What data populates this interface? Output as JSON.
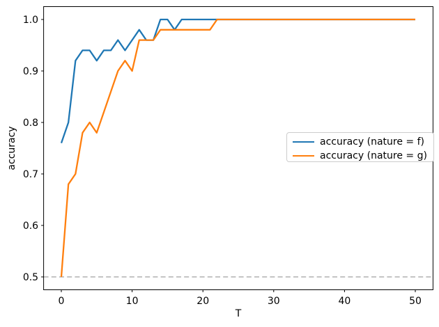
{
  "figure": {
    "background": "#ffffff"
  },
  "chart_data": {
    "type": "line",
    "xlabel": "T",
    "ylabel": "accuracy",
    "x_ticks": [
      0,
      10,
      20,
      30,
      40,
      50
    ],
    "y_ticks": [
      0.5,
      0.6,
      0.7,
      0.8,
      0.9,
      1.0
    ],
    "xlim": [
      -2.5,
      52.5
    ],
    "ylim": [
      0.475,
      1.025
    ],
    "grid": false,
    "axis_color": "#000000",
    "tick_label_color": "#000000",
    "reference_line": {
      "y": 0.5,
      "color": "#b0b0b0",
      "style": "dashed"
    },
    "legend": {
      "position": "center right",
      "border_color": "#cccccc",
      "entries": [
        "accuracy (nature = f)",
        "accuracy (nature = g)"
      ]
    },
    "series": [
      {
        "name": "accuracy (nature = f)",
        "color": "#1f77b4",
        "x": [
          0,
          1,
          2,
          3,
          4,
          5,
          6,
          7,
          8,
          9,
          10,
          11,
          12,
          13,
          14,
          15,
          16,
          17,
          18,
          19,
          20,
          21,
          22,
          23,
          24,
          25,
          26,
          27,
          28,
          29,
          30,
          31,
          32,
          33,
          34,
          35,
          36,
          37,
          38,
          39,
          40,
          41,
          42,
          43,
          44,
          45,
          46,
          47,
          48,
          49,
          50
        ],
        "values": [
          0.76,
          0.8,
          0.92,
          0.94,
          0.94,
          0.92,
          0.94,
          0.94,
          0.96,
          0.94,
          0.96,
          0.98,
          0.96,
          0.96,
          1.0,
          1.0,
          0.98,
          1.0,
          1.0,
          1.0,
          1.0,
          1.0,
          1.0,
          1.0,
          1.0,
          1.0,
          1.0,
          1.0,
          1.0,
          1.0,
          1.0,
          1.0,
          1.0,
          1.0,
          1.0,
          1.0,
          1.0,
          1.0,
          1.0,
          1.0,
          1.0,
          1.0,
          1.0,
          1.0,
          1.0,
          1.0,
          1.0,
          1.0,
          1.0,
          1.0,
          1.0
        ]
      },
      {
        "name": "accuracy (nature = g)",
        "color": "#ff7f0e",
        "x": [
          0,
          1,
          2,
          3,
          4,
          5,
          6,
          7,
          8,
          9,
          10,
          11,
          12,
          13,
          14,
          15,
          16,
          17,
          18,
          19,
          20,
          21,
          22,
          23,
          24,
          25,
          26,
          27,
          28,
          29,
          30,
          31,
          32,
          33,
          34,
          35,
          36,
          37,
          38,
          39,
          40,
          41,
          42,
          43,
          44,
          45,
          46,
          47,
          48,
          49,
          50
        ],
        "values": [
          0.5,
          0.68,
          0.7,
          0.78,
          0.8,
          0.78,
          0.82,
          0.86,
          0.9,
          0.92,
          0.9,
          0.96,
          0.96,
          0.96,
          0.98,
          0.98,
          0.98,
          0.98,
          0.98,
          0.98,
          0.98,
          0.98,
          1.0,
          1.0,
          1.0,
          1.0,
          1.0,
          1.0,
          1.0,
          1.0,
          1.0,
          1.0,
          1.0,
          1.0,
          1.0,
          1.0,
          1.0,
          1.0,
          1.0,
          1.0,
          1.0,
          1.0,
          1.0,
          1.0,
          1.0,
          1.0,
          1.0,
          1.0,
          1.0,
          1.0,
          1.0
        ]
      }
    ]
  }
}
